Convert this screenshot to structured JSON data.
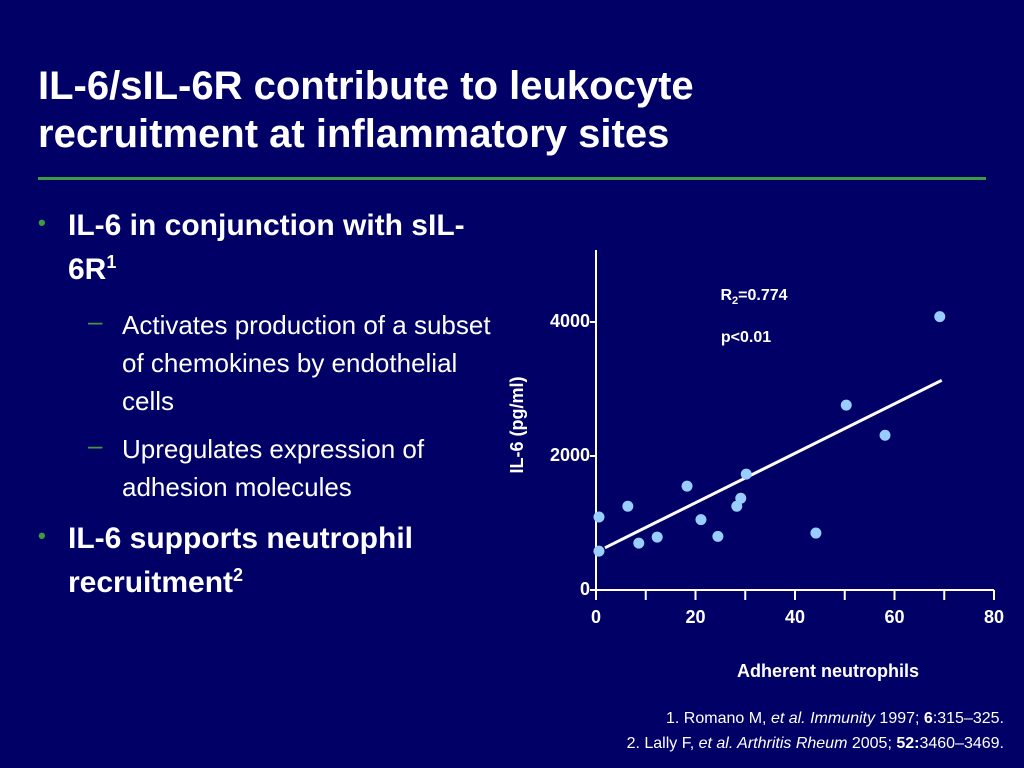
{
  "title": "IL-6/sIL-6R contribute to leukocyte recruitment at inflammatory sites",
  "bullets": [
    {
      "text": "IL-6 in conjunction with sIL-6R",
      "sup": "1",
      "subs": [
        "Activates production of a subset of chemokines by endothelial cells",
        "Upregulates expression of adhesion molecules"
      ]
    },
    {
      "text": "IL-6 supports neutrophil recruitment",
      "sup": "2"
    }
  ],
  "references": [
    [
      "1. Romano M, ",
      "et al. Immunity",
      " 1997; ",
      "6",
      ":315–325."
    ],
    [
      "2. Lally F, ",
      "et al. Arthritis Rheum",
      " 2005; ",
      "52:",
      "3460–3469."
    ]
  ],
  "chart_data": {
    "type": "scatter",
    "x_label": "Adherent neutrophils",
    "y_label": "IL-6 (pg/ml)",
    "x": [
      0.6,
      0.6,
      6.4,
      8.6,
      12.3,
      18.3,
      21.1,
      24.5,
      28.3,
      29.1,
      30.2,
      44.2,
      50.3,
      58.1,
      69.1
    ],
    "values": [
      1090,
      580,
      1250,
      700,
      790,
      1550,
      1050,
      800,
      1250,
      1370,
      1730,
      850,
      2760,
      2310,
      4080
    ],
    "color": "#99ccff",
    "fit_line": {
      "x": [
        1.8,
        69.5
      ],
      "y": [
        630,
        3130
      ],
      "color": "#ffffff"
    },
    "annotations": {
      "r2": [
        "R",
        "2",
        "=0.774"
      ],
      "p": "p<0.01"
    },
    "xlim": [
      0,
      80
    ],
    "xticks": [
      0,
      20,
      40,
      60,
      80
    ],
    "xminorticks": [
      10,
      30,
      50,
      70
    ],
    "ylim": [
      0,
      5000
    ],
    "yticks": [
      0,
      2000,
      4000
    ]
  }
}
